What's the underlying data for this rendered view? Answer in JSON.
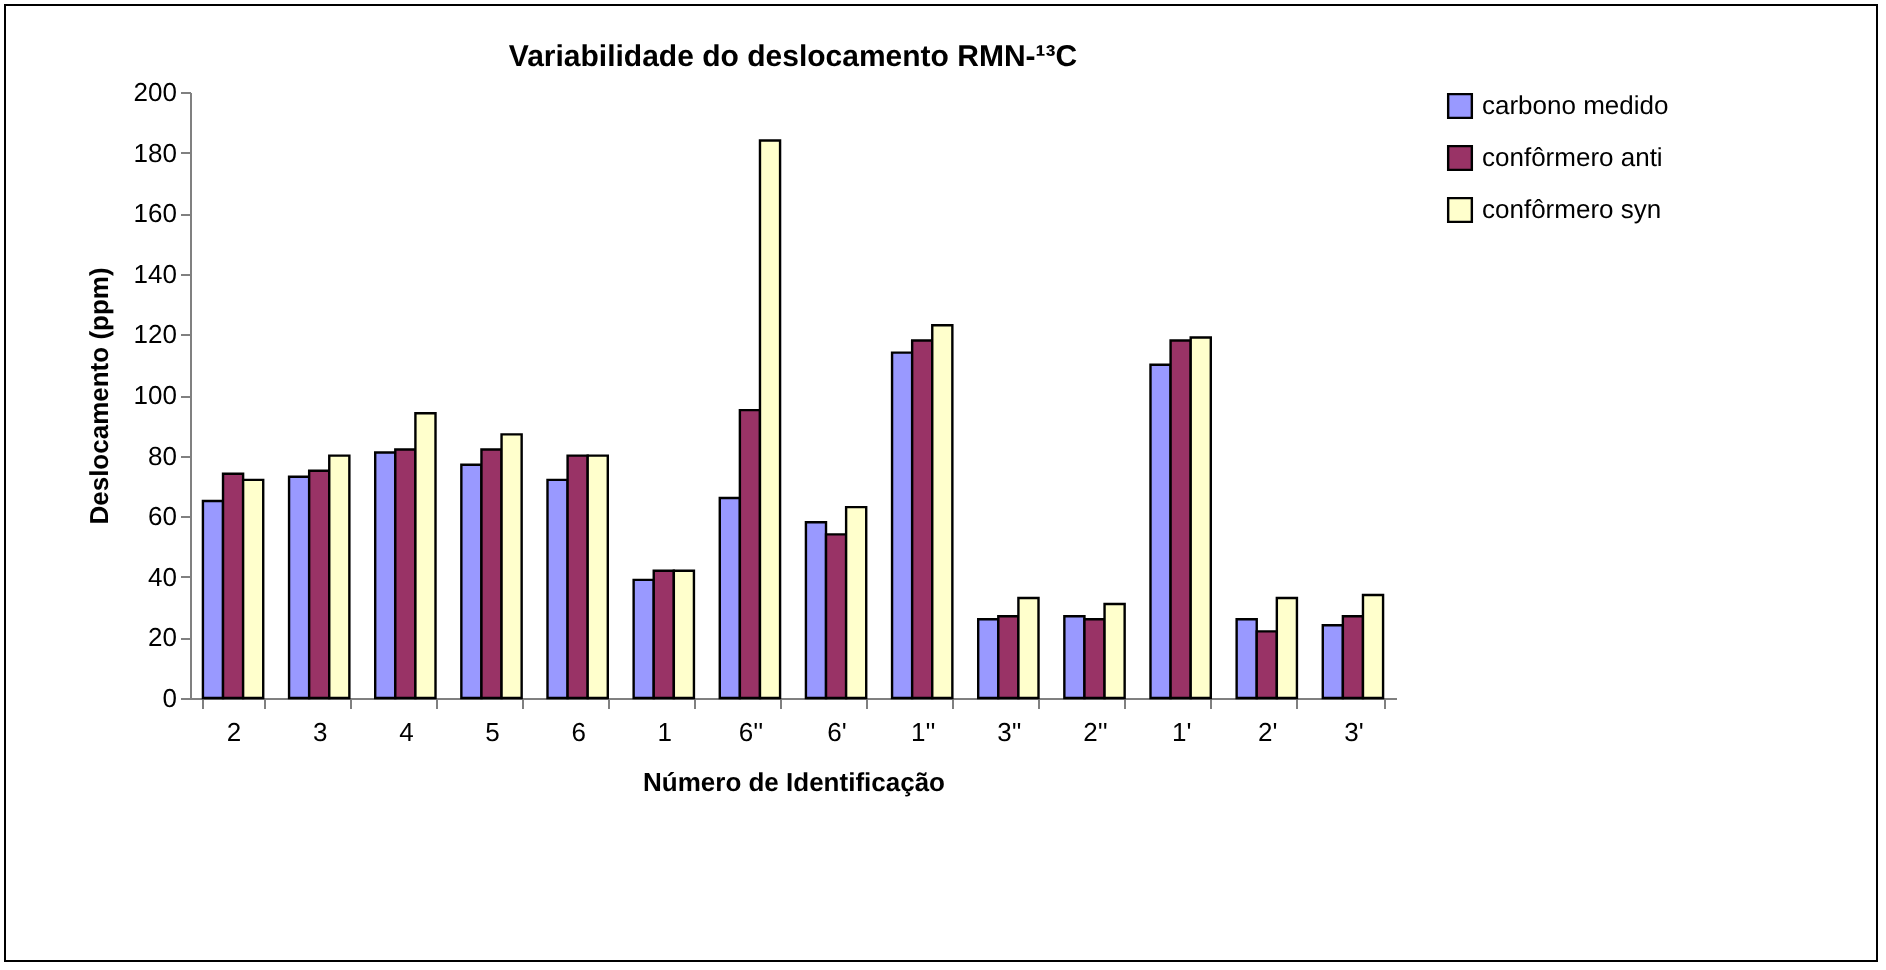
{
  "chart_data": {
    "type": "bar",
    "title": "Variabilidade do deslocamento RMN-¹³C",
    "xlabel": "Número de Identificação",
    "ylabel": "Deslocamento (ppm)",
    "categories": [
      "2",
      "3",
      "4",
      "5",
      "6",
      "1",
      "6''",
      "6'",
      "1''",
      "3''",
      "2''",
      "1'",
      "2'",
      "3'"
    ],
    "series": [
      {
        "name": "carbono medido",
        "color": "#9999ff",
        "values": [
          65,
          73,
          81,
          77,
          72,
          39,
          66,
          58,
          114,
          26,
          27,
          110,
          26,
          24
        ]
      },
      {
        "name": "confôrmero anti",
        "color": "#993366",
        "values": [
          74,
          75,
          82,
          82,
          80,
          42,
          95,
          54,
          118,
          27,
          26,
          118,
          22,
          27
        ]
      },
      {
        "name": "confôrmero syn",
        "color": "#ffffcc",
        "values": [
          72,
          80,
          94,
          87,
          80,
          42,
          184,
          63,
          123,
          33,
          31,
          119,
          33,
          34
        ]
      }
    ],
    "ylim": [
      0,
      200
    ],
    "yticks": [
      0,
      20,
      40,
      60,
      80,
      100,
      120,
      140,
      160,
      180,
      200
    ],
    "grid": false,
    "legend": "right"
  }
}
